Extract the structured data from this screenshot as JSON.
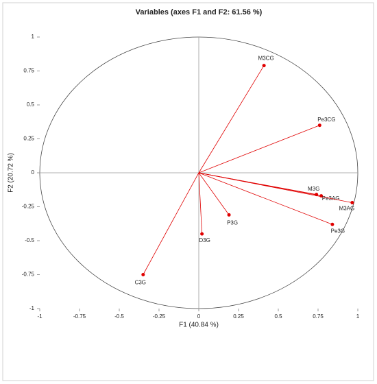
{
  "chart_data": {
    "type": "scatter",
    "title": "Variables (axes F1 and F2: 61.56 %)",
    "x_label": "F1 (40.84 %)",
    "y_label": "F2 (20.72 %)",
    "labels": [
      "M3CG",
      "Pe3CG",
      "M3G",
      "Pe3AG",
      "M3AG",
      "Pe3G",
      "P3G",
      "D3G",
      "C3G"
    ],
    "x": [
      0.41,
      0.76,
      0.74,
      0.77,
      0.965,
      0.84,
      0.19,
      0.02,
      -0.35
    ],
    "y": [
      0.79,
      0.35,
      -0.16,
      -0.17,
      -0.22,
      -0.38,
      -0.31,
      -0.45,
      -0.75
    ],
    "color": "#e00000",
    "xlim": [
      -1,
      1
    ],
    "ylim": [
      -1,
      1
    ],
    "xticks": [
      -1,
      -0.75,
      -0.5,
      -0.25,
      0,
      0.25,
      0.5,
      0.75,
      1
    ],
    "yticks": [
      -1,
      -0.75,
      -0.5,
      -0.25,
      0,
      0.25,
      0.5,
      0.75,
      1
    ],
    "circle": true
  }
}
